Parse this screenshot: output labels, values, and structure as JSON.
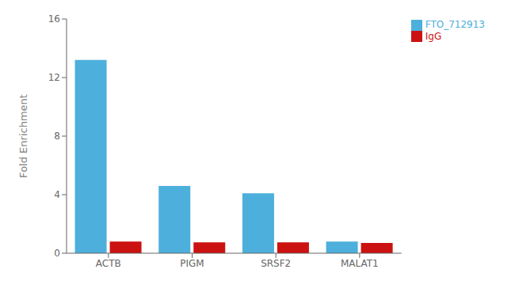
{
  "chart_data": {
    "type": "bar",
    "ylabel": "Fold Enrichment",
    "categories": [
      "ACTB",
      "PIGM",
      "SRSF2",
      "MALAT1"
    ],
    "series": [
      {
        "name": "FTO_712913",
        "color": "#4DAFDB",
        "values": [
          13.2,
          4.6,
          4.1,
          0.8
        ]
      },
      {
        "name": "IgG",
        "color": "#CC1111",
        "values": [
          0.8,
          0.75,
          0.75,
          0.7
        ]
      }
    ],
    "ylim": [
      0,
      16
    ],
    "yticks": [
      0,
      4,
      8,
      12,
      16
    ],
    "grid": false,
    "legend": "upper right"
  }
}
